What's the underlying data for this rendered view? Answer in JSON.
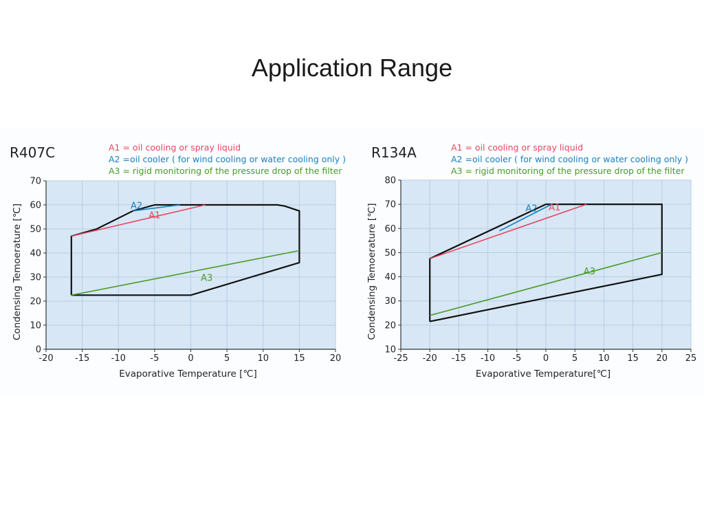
{
  "page": {
    "title": "Application Range"
  },
  "chart_data": [
    {
      "type": "line",
      "title": "R407C",
      "xlabel": "Evaporative Temperature [℃]",
      "ylabel": "Condensing Temoerature [℃]",
      "xlim": [
        -20,
        20
      ],
      "ylim": [
        0,
        70
      ],
      "xticks": [
        -20,
        -15,
        -10,
        -5,
        0,
        5,
        10,
        15,
        20
      ],
      "yticks": [
        0,
        10,
        20,
        30,
        40,
        50,
        60,
        70
      ],
      "grid": true,
      "legend": [
        {
          "text": "A1 = oil cooling or spray liquid",
          "color": "#e8455f"
        },
        {
          "text": "A2 =oil cooler ( for wind cooling or water cooling only )",
          "color": "#1a7fc0"
        },
        {
          "text": "A3 = rigid monitoring of the pressure drop of the filter",
          "color": "#4a9a2a"
        }
      ],
      "series": [
        {
          "role": "envelope",
          "color": "#111111",
          "x": [
            -16.5,
            -16.5,
            -13,
            -8,
            -5,
            12,
            13,
            15,
            15,
            0,
            -16.5
          ],
          "y": [
            22.5,
            47,
            50,
            57.5,
            60,
            60,
            59.5,
            57.5,
            36,
            22.5,
            22.5
          ]
        },
        {
          "name": "A1",
          "color": "#e8455f",
          "x": [
            -16.5,
            2
          ],
          "y": [
            47,
            60
          ]
        },
        {
          "name": "A2",
          "color": "#1a7fc0",
          "x": [
            -8,
            -1.5
          ],
          "y": [
            57.5,
            60
          ]
        },
        {
          "name": "A3",
          "color": "#4a9a2a",
          "x": [
            -16.5,
            15
          ],
          "y": [
            22.5,
            41
          ]
        }
      ],
      "annotations": [
        {
          "text": "A2",
          "x": -7.5,
          "y": 58.5,
          "color": "#1a7fc0"
        },
        {
          "text": "A1",
          "x": -5,
          "y": 54.5,
          "color": "#e8455f"
        },
        {
          "text": "A3",
          "x": 2.2,
          "y": 28.5,
          "color": "#4a9a2a"
        }
      ]
    },
    {
      "type": "line",
      "title": "R134A",
      "xlabel": "Evaporative Temperature[℃]",
      "ylabel": "Condensing Temoerature [℃]",
      "xlim": [
        -25,
        25
      ],
      "ylim": [
        10,
        80
      ],
      "xticks": [
        -25,
        -20,
        -15,
        -10,
        -5,
        0,
        5,
        10,
        15,
        20,
        25
      ],
      "yticks": [
        10,
        20,
        30,
        40,
        50,
        60,
        70,
        80
      ],
      "grid": true,
      "legend": [
        {
          "text": "A1 = oil cooling or spray liquid",
          "color": "#e8455f"
        },
        {
          "text": "A2 =oil cooler ( for wind cooling or water cooling only )",
          "color": "#1a7fc0"
        },
        {
          "text": "A3 = rigid monitoring of the pressure drop of the filter",
          "color": "#4a9a2a"
        }
      ],
      "series": [
        {
          "role": "envelope",
          "color": "#111111",
          "x": [
            -20,
            -20,
            0,
            20,
            20,
            -20
          ],
          "y": [
            21.5,
            47.5,
            70,
            70,
            41,
            21.5
          ]
        },
        {
          "name": "A1",
          "color": "#e8455f",
          "x": [
            -20,
            7
          ],
          "y": [
            47.5,
            70
          ]
        },
        {
          "name": "A2",
          "color": "#1a7fc0",
          "x": [
            -8,
            1
          ],
          "y": [
            59,
            70
          ]
        },
        {
          "name": "A3",
          "color": "#4a9a2a",
          "x": [
            -20,
            20
          ],
          "y": [
            24,
            50
          ]
        }
      ],
      "annotations": [
        {
          "text": "A2",
          "x": -2.5,
          "y": 67,
          "color": "#1a7fc0"
        },
        {
          "text": "A1",
          "x": 1.5,
          "y": 67.5,
          "color": "#e8455f"
        },
        {
          "text": "A3",
          "x": 7.5,
          "y": 41,
          "color": "#4a9a2a"
        }
      ]
    }
  ]
}
